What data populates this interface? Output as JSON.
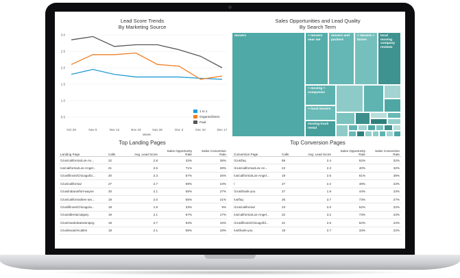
{
  "line_chart": {
    "title_line1": "Lead Score Trends",
    "title_line2": "By Marketing Source",
    "xlabel": "Week",
    "legend": [
      {
        "name": "1 to 1",
        "color": "#1f9bd7"
      },
      {
        "name": "Organic/Direct",
        "color": "#ef7d21"
      },
      {
        "name": "Paid",
        "color": "#555555"
      }
    ]
  },
  "treemap": {
    "title_line1": "Sales Opportunities and Lead Quality",
    "title_line2": "By Search Term",
    "cells": [
      {
        "label": "movers",
        "color": "#4fa9a6"
      },
      {
        "label": "+ movers near me",
        "color": "#56aeab"
      },
      {
        "label": "movers and packers",
        "color": "#64b7b4"
      },
      {
        "label": "+ movers + boxes",
        "color": "#75c0bd"
      },
      {
        "label": "local moving company reviews",
        "color": "#3e9390"
      },
      {
        "label": "+ moving + companies",
        "color": "#5bb2af"
      },
      {
        "label": "+ local movers",
        "color": "#6abab7"
      },
      {
        "label": "moving truck rental",
        "color": "#479f9c"
      }
    ]
  },
  "chart_data": {
    "type": "line",
    "title": "Lead Score Trends By Marketing Source",
    "xlabel": "Week",
    "ylabel": "",
    "categories": [
      "Oct 29",
      "Nov 5",
      "Nov 12",
      "Nov 19",
      "Nov 26",
      "Dec 3",
      "Dec 10",
      "Dec 17"
    ],
    "ylim": [
      0,
      3.0
    ],
    "yticks": [
      0.5,
      1.0,
      1.5,
      2.0,
      2.5,
      3.0
    ],
    "yticklabels": [
      "0.5",
      "1.0",
      "1.5",
      "2.0",
      "2.5",
      "3.0"
    ],
    "series": [
      {
        "name": "1 to 1",
        "color": "#1f9bd7",
        "values": [
          1.8,
          1.95,
          1.8,
          1.72,
          1.72,
          1.72,
          1.68,
          1.65
        ]
      },
      {
        "name": "Organic/Direct",
        "color": "#ef7d21",
        "values": [
          2.1,
          2.4,
          2.4,
          2.45,
          2.1,
          2.05,
          1.65,
          1.75
        ]
      },
      {
        "name": "Paid",
        "color": "#555555",
        "values": [
          2.85,
          2.95,
          2.65,
          2.7,
          2.7,
          2.55,
          2.35,
          2.0
        ]
      }
    ]
  },
  "landing_table": {
    "title": "Top Landing Pages",
    "headers": [
      "Landing Page",
      "Calls",
      "Avg. Lead Score",
      "Sales Opportunity Rate",
      "Sales Conversion Rate"
    ],
    "rows": [
      [
        "/1/us/california/Los-An...",
        "22",
        "2.8",
        "33%",
        "38%"
      ],
      [
        "/us/california/Los-Angel...",
        "21",
        "2.5",
        "71%",
        "28%"
      ],
      [
        "/1/us/illinois/Chicago/bi...",
        "20",
        "2.3",
        "57%",
        "25%"
      ],
      [
        "/1/us/california/",
        "27",
        "2.7",
        "59%",
        "23%"
      ],
      [
        "/1/us/indiana/fort-wayne",
        "20",
        "2.1",
        "55%",
        "27%"
      ],
      [
        "/1/us/california/bev-am...",
        "19",
        "2.0",
        "55%",
        "21%"
      ],
      [
        "/1/us/illinois/Chicago/a...",
        "18",
        "1.8",
        "33%",
        "9%"
      ],
      [
        "/1/us/alberta/calgary",
        "19",
        "2.1",
        "67%",
        "17%"
      ],
      [
        "/1/us/manitoba/winnipeg",
        "18",
        "2.7",
        "63%",
        "16%"
      ],
      [
        "/1/us/texas/mcallen",
        "18",
        "2.1",
        "55%",
        "18%"
      ]
    ]
  },
  "conversion_table": {
    "title": "Top Conversion Pages",
    "headers": [
      "Conversion Page",
      "Calls",
      "Avg. Lead Score",
      "Sales Opportunity Rate",
      "Sales Conversion Rate"
    ],
    "rows": [
      [
        "/1/us/faq",
        "59",
        "2.4",
        "52%",
        "32%"
      ],
      [
        "/1/us/california/Los-An...",
        "22",
        "2.3",
        "40%",
        "32%"
      ],
      [
        "/us/california/Los-Angel...",
        "19",
        "2.5",
        "61%",
        "39%"
      ],
      [
        "/",
        "27",
        "2.2",
        "48%",
        "23%"
      ],
      [
        "/1/us/thank-you",
        "27",
        "1.9",
        "44%",
        "23%"
      ],
      [
        "/us/faq",
        "26",
        "3.7",
        "73%",
        "27%"
      ],
      [
        "/1/us/california/",
        "23",
        "2.0",
        "52%",
        "22%"
      ],
      [
        "/us/california/Los-Angel...",
        "22",
        "3.2",
        "73%",
        "23%"
      ],
      [
        "/1/us/illinois/Chicago/bl...",
        "21",
        "2.6",
        "62%",
        "24%"
      ],
      [
        "/us/thank-you",
        "18",
        "2.7",
        "33%",
        "22%"
      ]
    ]
  }
}
